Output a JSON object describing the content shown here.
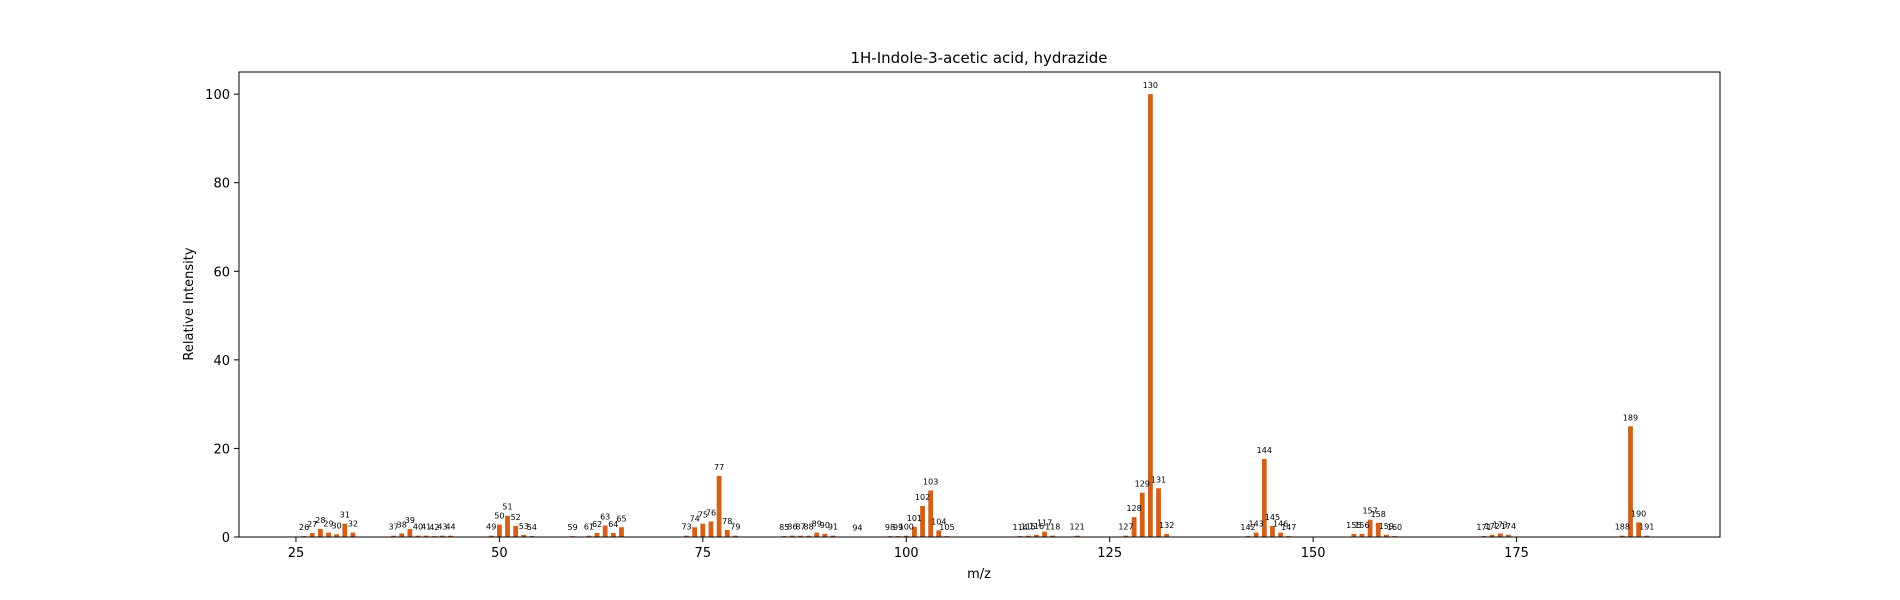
{
  "chart_data": {
    "type": "bar",
    "title": "1H-Indole-3-acetic acid, hydrazide",
    "xlabel": "m/z",
    "ylabel": "Relative Intensity",
    "xlim": [
      18,
      200
    ],
    "ylim": [
      0,
      105
    ],
    "xticks": [
      25,
      50,
      75,
      100,
      125,
      150,
      175
    ],
    "yticks": [
      0,
      20,
      40,
      60,
      80,
      100
    ],
    "bar_color": "#d2601a",
    "grid": false,
    "peaks": [
      {
        "mz": 26,
        "intensity": 0.2
      },
      {
        "mz": 27,
        "intensity": 0.9
      },
      {
        "mz": 28,
        "intensity": 1.8
      },
      {
        "mz": 29,
        "intensity": 1.0
      },
      {
        "mz": 30,
        "intensity": 0.6
      },
      {
        "mz": 31,
        "intensity": 3.0
      },
      {
        "mz": 32,
        "intensity": 1.0
      },
      {
        "mz": 37,
        "intensity": 0.3
      },
      {
        "mz": 38,
        "intensity": 0.8
      },
      {
        "mz": 39,
        "intensity": 1.8
      },
      {
        "mz": 40,
        "intensity": 0.3
      },
      {
        "mz": 41,
        "intensity": 0.3
      },
      {
        "mz": 42,
        "intensity": 0.2
      },
      {
        "mz": 43,
        "intensity": 0.3
      },
      {
        "mz": 44,
        "intensity": 0.3
      },
      {
        "mz": 49,
        "intensity": 0.3
      },
      {
        "mz": 50,
        "intensity": 2.8
      },
      {
        "mz": 51,
        "intensity": 4.8
      },
      {
        "mz": 52,
        "intensity": 2.5
      },
      {
        "mz": 53,
        "intensity": 0.5
      },
      {
        "mz": 54,
        "intensity": 0.2
      },
      {
        "mz": 59,
        "intensity": 0.2
      },
      {
        "mz": 61,
        "intensity": 0.3
      },
      {
        "mz": 62,
        "intensity": 0.9
      },
      {
        "mz": 63,
        "intensity": 2.6
      },
      {
        "mz": 64,
        "intensity": 0.9
      },
      {
        "mz": 65,
        "intensity": 2.2
      },
      {
        "mz": 73,
        "intensity": 0.3
      },
      {
        "mz": 74,
        "intensity": 2.2
      },
      {
        "mz": 75,
        "intensity": 3.0
      },
      {
        "mz": 76,
        "intensity": 3.5
      },
      {
        "mz": 77,
        "intensity": 13.8
      },
      {
        "mz": 78,
        "intensity": 1.6
      },
      {
        "mz": 79,
        "intensity": 0.3
      },
      {
        "mz": 85,
        "intensity": 0.2
      },
      {
        "mz": 86,
        "intensity": 0.3
      },
      {
        "mz": 87,
        "intensity": 0.3
      },
      {
        "mz": 88,
        "intensity": 0.3
      },
      {
        "mz": 89,
        "intensity": 1.0
      },
      {
        "mz": 90,
        "intensity": 0.7
      },
      {
        "mz": 91,
        "intensity": 0.3
      },
      {
        "mz": 94,
        "intensity": 0.1
      },
      {
        "mz": 98,
        "intensity": 0.2
      },
      {
        "mz": 99,
        "intensity": 0.2
      },
      {
        "mz": 100,
        "intensity": 0.3
      },
      {
        "mz": 101,
        "intensity": 2.3
      },
      {
        "mz": 102,
        "intensity": 7.0
      },
      {
        "mz": 103,
        "intensity": 10.5
      },
      {
        "mz": 104,
        "intensity": 1.5
      },
      {
        "mz": 105,
        "intensity": 0.2
      },
      {
        "mz": 114,
        "intensity": 0.2
      },
      {
        "mz": 115,
        "intensity": 0.3
      },
      {
        "mz": 116,
        "intensity": 0.5
      },
      {
        "mz": 117,
        "intensity": 1.2
      },
      {
        "mz": 118,
        "intensity": 0.3
      },
      {
        "mz": 121,
        "intensity": 0.3
      },
      {
        "mz": 127,
        "intensity": 0.3
      },
      {
        "mz": 128,
        "intensity": 4.5
      },
      {
        "mz": 129,
        "intensity": 10.0
      },
      {
        "mz": 130,
        "intensity": 100
      },
      {
        "mz": 131,
        "intensity": 11.0
      },
      {
        "mz": 132,
        "intensity": 0.7
      },
      {
        "mz": 142,
        "intensity": 0.2
      },
      {
        "mz": 143,
        "intensity": 1.0
      },
      {
        "mz": 144,
        "intensity": 17.6
      },
      {
        "mz": 145,
        "intensity": 2.5
      },
      {
        "mz": 146,
        "intensity": 1.0
      },
      {
        "mz": 147,
        "intensity": 0.2
      },
      {
        "mz": 155,
        "intensity": 0.7
      },
      {
        "mz": 156,
        "intensity": 0.7
      },
      {
        "mz": 157,
        "intensity": 3.9
      },
      {
        "mz": 158,
        "intensity": 3.2
      },
      {
        "mz": 159,
        "intensity": 0.5
      },
      {
        "mz": 160,
        "intensity": 0.2
      },
      {
        "mz": 171,
        "intensity": 0.2
      },
      {
        "mz": 172,
        "intensity": 0.5
      },
      {
        "mz": 173,
        "intensity": 0.8
      },
      {
        "mz": 174,
        "intensity": 0.5
      },
      {
        "mz": 188,
        "intensity": 0.3
      },
      {
        "mz": 189,
        "intensity": 25.0
      },
      {
        "mz": 190,
        "intensity": 3.3
      },
      {
        "mz": 191,
        "intensity": 0.3
      }
    ]
  }
}
